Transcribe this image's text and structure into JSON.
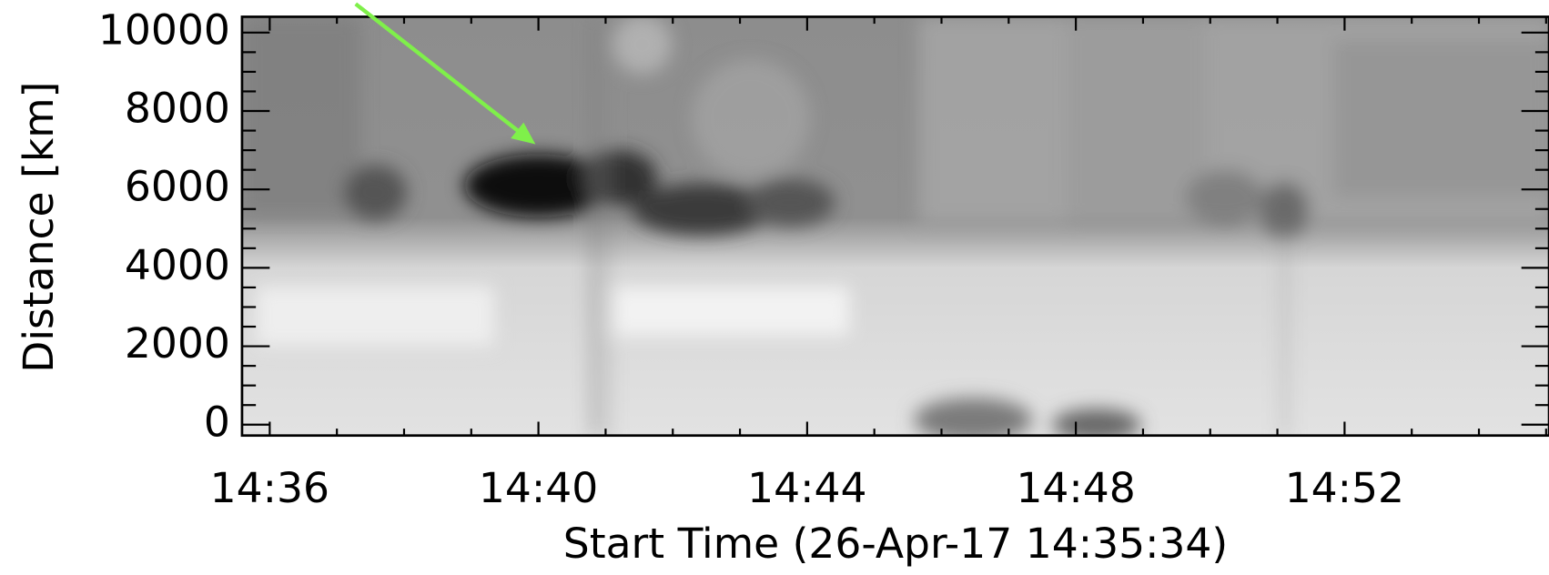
{
  "chart_data": {
    "type": "heatmap",
    "xlabel": "Start Time (26-Apr-17 14:35:34)",
    "ylabel": "Distance [km]",
    "xlim": [
      35.588,
      55.044
    ],
    "xticks": [
      {
        "value": 36,
        "label": "14:36"
      },
      {
        "value": 40,
        "label": "14:40"
      },
      {
        "value": 44,
        "label": "14:44"
      },
      {
        "value": 48,
        "label": "14:48"
      },
      {
        "value": 52,
        "label": "14:52"
      }
    ],
    "xminorticks": [
      37,
      38,
      39,
      41,
      42,
      43,
      45,
      46,
      47,
      49,
      50,
      51,
      53,
      54,
      55
    ],
    "ylim": [
      -277,
      10403
    ],
    "yticks": [
      0,
      2000,
      4000,
      6000,
      8000,
      10000
    ],
    "yminorticks": [
      500,
      1000,
      1500,
      2500,
      3000,
      3500,
      4500,
      5000,
      5500,
      6500,
      7000,
      7500,
      8500,
      9000,
      9500
    ]
  }
}
